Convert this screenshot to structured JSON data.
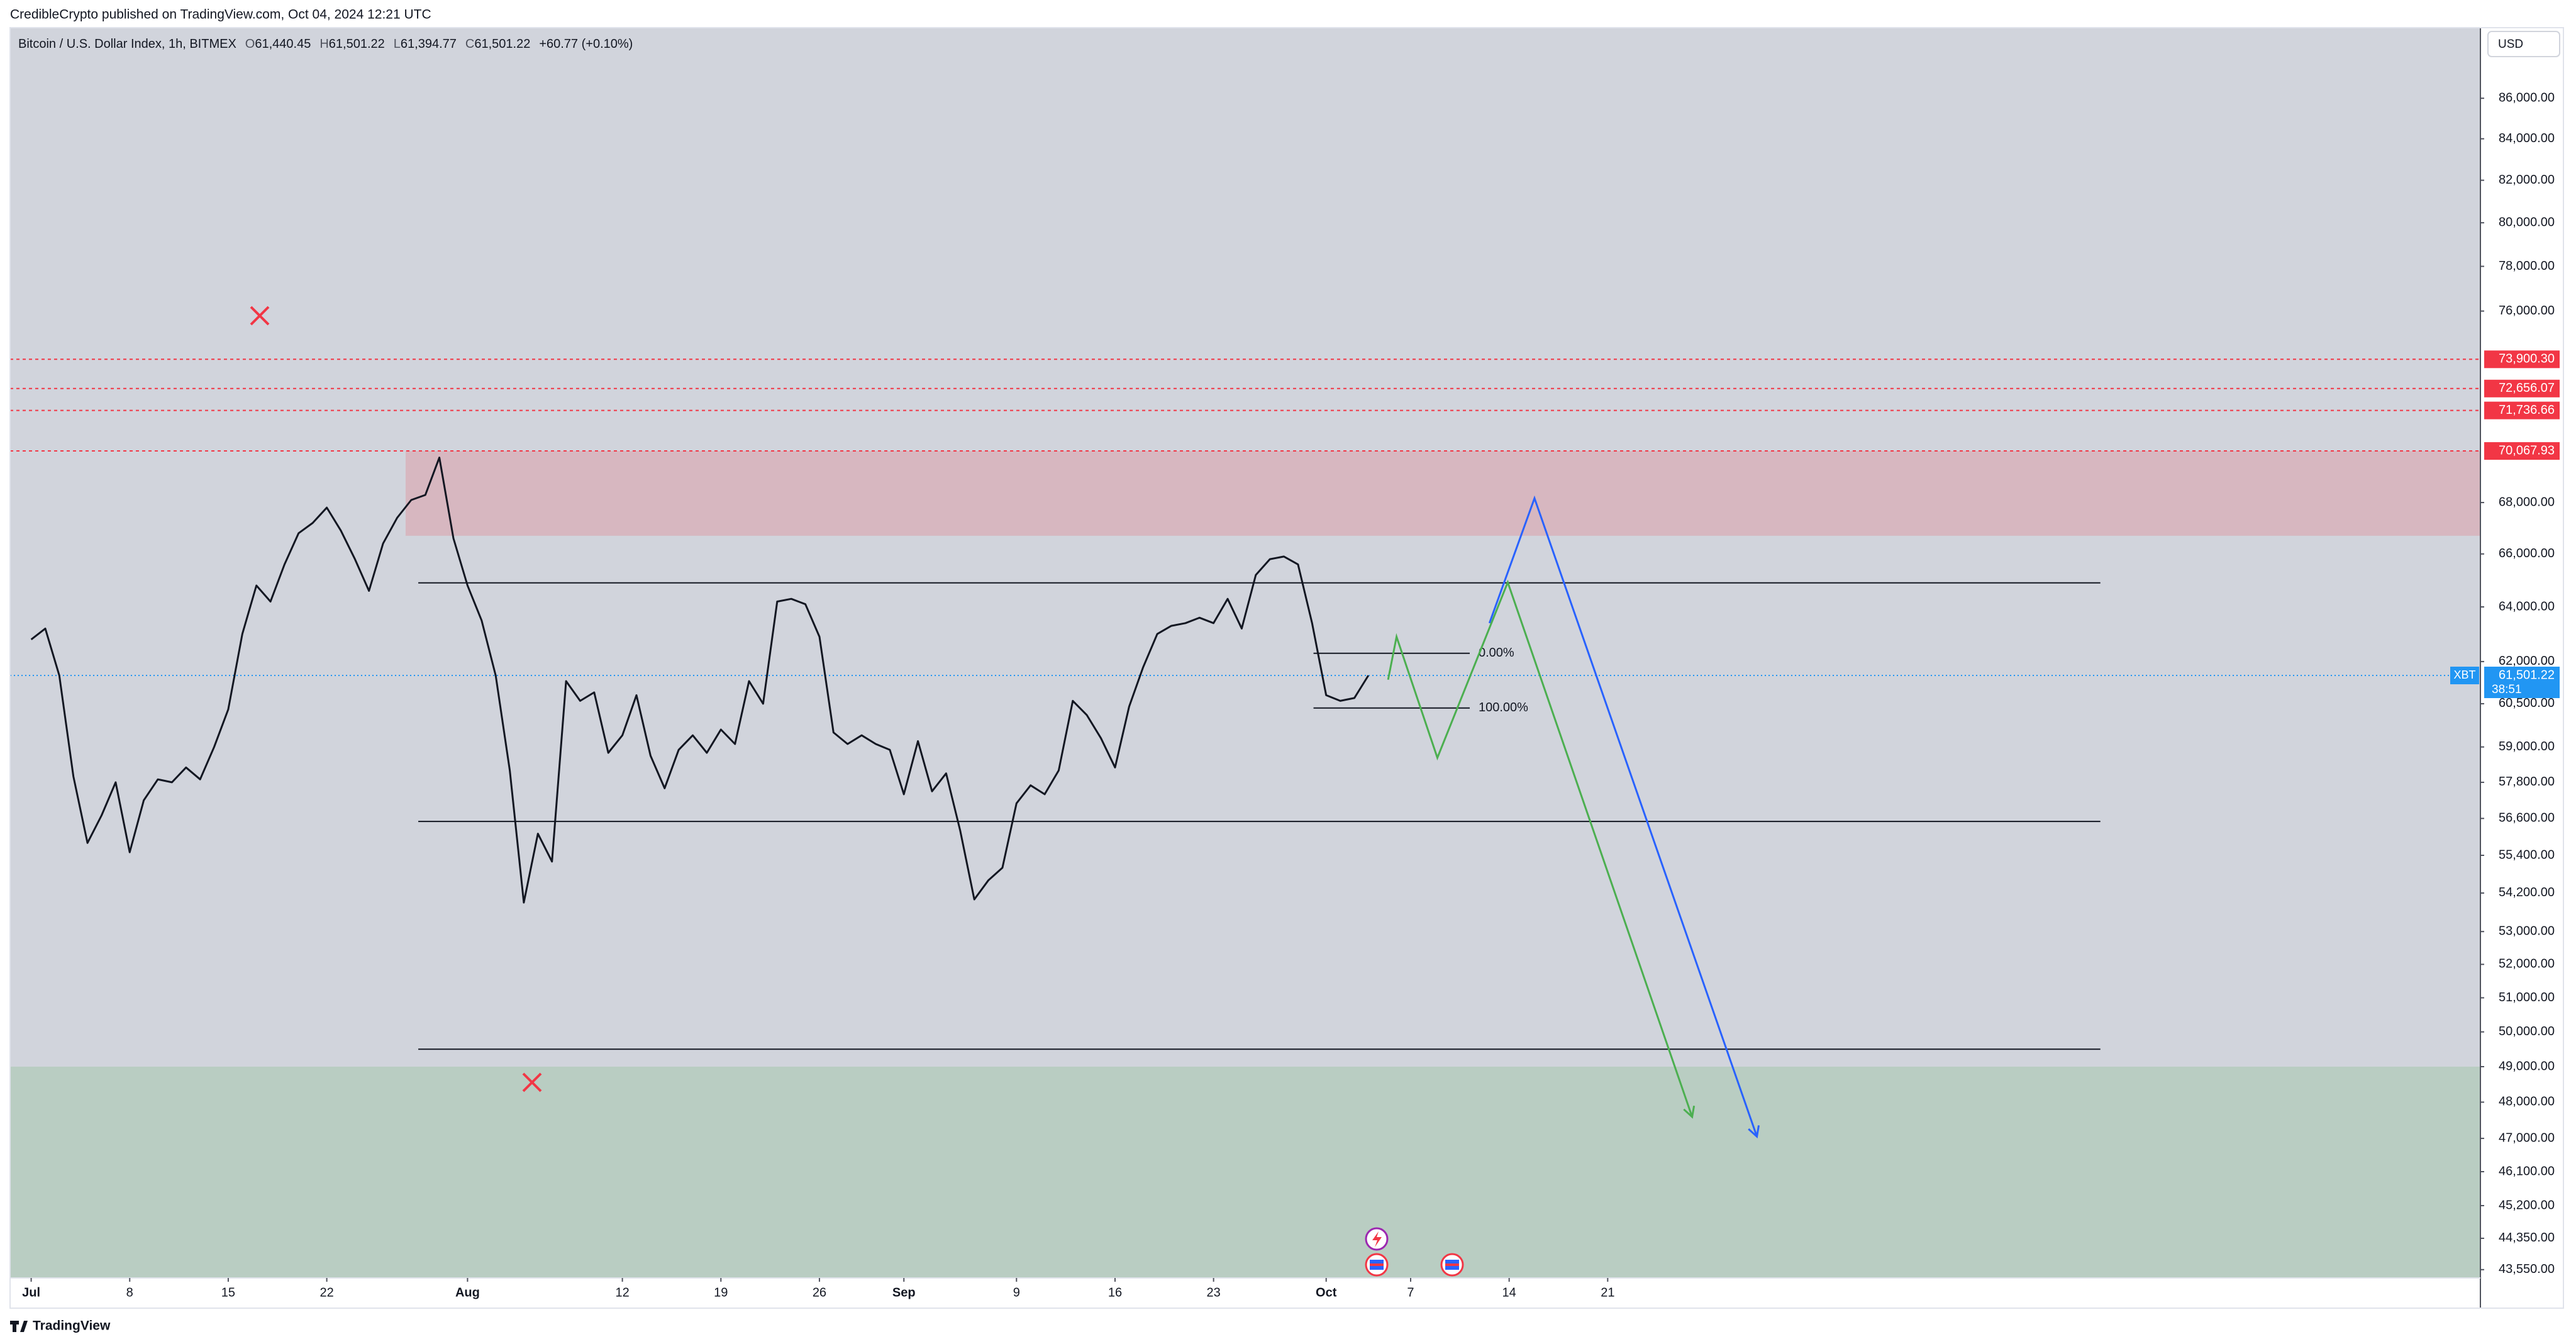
{
  "header": "CredibleCrypto published on TradingView.com, Oct 04, 2024 12:21 UTC",
  "brand": "TradingView",
  "currency": "USD",
  "chart_data": {
    "type": "line",
    "title": "Bitcoin / U.S. Dollar Index, 1h, BITMEX",
    "ohlc": [
      {
        "label": "O",
        "value": "61,440.45"
      },
      {
        "label": "H",
        "value": "61,501.22"
      },
      {
        "label": "L",
        "value": "61,394.77"
      },
      {
        "label": "C",
        "value": "61,501.22"
      }
    ],
    "change": "+60.77 (+0.10%)",
    "color": "#131722",
    "log_scale": true,
    "grid": false,
    "x": [
      0,
      1,
      2,
      3,
      4,
      5,
      6,
      7,
      8,
      9,
      10,
      11,
      12,
      13,
      14,
      15,
      16,
      17,
      18,
      19,
      20,
      21,
      22,
      23,
      24,
      25,
      26,
      27,
      28,
      29,
      30,
      31,
      32,
      33,
      34,
      35,
      36,
      37,
      38,
      39,
      40,
      41,
      42,
      43,
      44,
      45,
      46,
      47,
      48,
      49,
      50,
      51,
      52,
      53,
      54,
      55,
      56,
      57,
      58,
      59,
      60,
      61,
      62,
      63,
      64,
      65,
      66,
      67,
      68,
      69,
      70,
      71,
      72,
      73,
      74,
      75,
      76,
      77,
      78,
      79,
      80,
      81,
      82,
      83,
      84,
      85,
      86,
      87,
      88,
      89,
      90,
      91,
      92,
      93,
      94,
      95
    ],
    "values": [
      62800,
      63200,
      61500,
      58000,
      55800,
      56700,
      57800,
      55500,
      57200,
      57900,
      57800,
      58300,
      57900,
      59000,
      60300,
      63000,
      64800,
      64200,
      65600,
      66800,
      67200,
      67800,
      66900,
      65800,
      64600,
      66400,
      67400,
      68100,
      68300,
      69800,
      66600,
      64800,
      63500,
      61500,
      58200,
      53900,
      56100,
      55200,
      61300,
      60600,
      60900,
      58800,
      59400,
      60800,
      58700,
      57600,
      58900,
      59400,
      58800,
      59600,
      59100,
      61300,
      60500,
      64200,
      64300,
      64100,
      62900,
      59500,
      59100,
      59400,
      59100,
      58900,
      57400,
      59200,
      57500,
      58100,
      56200,
      54000,
      54600,
      55000,
      57100,
      57700,
      57400,
      58200,
      60600,
      60100,
      59300,
      58300,
      60400,
      61800,
      63000,
      63300,
      63400,
      63600,
      63400,
      64300,
      63200,
      65200,
      65800,
      65900,
      65600,
      63400,
      60800,
      60600,
      60700,
      61501.22
    ],
    "xlim": [
      -1.5,
      174
    ],
    "ylim": [
      43340,
      89600
    ],
    "xticks": [
      {
        "value": 0,
        "label": "Jul"
      },
      {
        "value": 7,
        "label": "8"
      },
      {
        "value": 14,
        "label": "15"
      },
      {
        "value": 21,
        "label": "22"
      },
      {
        "value": 31,
        "label": "Aug"
      },
      {
        "value": 42,
        "label": "12"
      },
      {
        "value": 49,
        "label": "19"
      },
      {
        "value": 56,
        "label": "26"
      },
      {
        "value": 62,
        "label": "Sep"
      },
      {
        "value": 70,
        "label": "9"
      },
      {
        "value": 77,
        "label": "16"
      },
      {
        "value": 84,
        "label": "23"
      },
      {
        "value": 92,
        "label": "Oct"
      },
      {
        "value": 98,
        "label": "7"
      },
      {
        "value": 105,
        "label": "14"
      },
      {
        "value": 112,
        "label": "21"
      }
    ],
    "yticks": [
      {
        "value": 86000,
        "label": "86,000.00"
      },
      {
        "value": 84000,
        "label": "84,000.00"
      },
      {
        "value": 82000,
        "label": "82,000.00"
      },
      {
        "value": 80000,
        "label": "80,000.00"
      },
      {
        "value": 78000,
        "label": "78,000.00"
      },
      {
        "value": 76000,
        "label": "76,000.00"
      },
      {
        "value": 68000,
        "label": "68,000.00"
      },
      {
        "value": 66000,
        "label": "66,000.00"
      },
      {
        "value": 64000,
        "label": "64,000.00"
      },
      {
        "value": 62000,
        "label": "62,000.00"
      },
      {
        "value": 60500,
        "label": "60,500.00"
      },
      {
        "value": 59000,
        "label": "59,000.00"
      },
      {
        "value": 57800,
        "label": "57,800.00"
      },
      {
        "value": 56600,
        "label": "56,600.00"
      },
      {
        "value": 55400,
        "label": "55,400.00"
      },
      {
        "value": 54200,
        "label": "54,200.00"
      },
      {
        "value": 53000,
        "label": "53,000.00"
      },
      {
        "value": 52000,
        "label": "52,000.00"
      },
      {
        "value": 51000,
        "label": "51,000.00"
      },
      {
        "value": 50000,
        "label": "50,000.00"
      },
      {
        "value": 49000,
        "label": "49,000.00"
      },
      {
        "value": 48000,
        "label": "48,000.00"
      },
      {
        "value": 47000,
        "label": "47,000.00"
      },
      {
        "value": 46100,
        "label": "46,100.00"
      },
      {
        "value": 45200,
        "label": "45,200.00"
      },
      {
        "value": 44350,
        "label": "44,350.00"
      },
      {
        "value": 43550,
        "label": "43,550.00"
      }
    ],
    "zones": [
      {
        "top": 70067.93,
        "bottom": 66700,
        "start": 26.6,
        "color": "rgba(242,54,69,0.18)"
      },
      {
        "top": 49000,
        "start": -1.5,
        "color": "rgba(76,175,80,0.18)"
      }
    ],
    "price_lines": [
      {
        "value": 73900.3,
        "label": "73,900.30"
      },
      {
        "value": 72656.07,
        "label": "72,656.07"
      },
      {
        "value": 71736.66,
        "label": "71,736.66"
      },
      {
        "value": 70067.93,
        "label": "70,067.93"
      }
    ],
    "price_line_color": "#f23645",
    "levels": [
      {
        "value": 64900,
        "start": 27.5,
        "end": 147
      },
      {
        "value": 56500,
        "start": 27.5,
        "end": 147
      },
      {
        "value": 49500,
        "start": 27.5,
        "end": 147
      }
    ],
    "fib": {
      "start": 91.1,
      "end": 102.2,
      "levels": [
        {
          "value": 62300,
          "label": "0.00%"
        },
        {
          "value": 60350,
          "label": "100.00%"
        }
      ]
    },
    "projections": [
      {
        "color": "#4caf50",
        "x": [
          96.4,
          97.0,
          99.9,
          104.9,
          118.0
        ],
        "y": [
          61350,
          62900,
          58630,
          64920,
          47590
        ]
      },
      {
        "color": "#2962ff",
        "x": [
          103.6,
          106.8,
          122.6
        ],
        "y": [
          63400,
          68170,
          47050
        ]
      }
    ],
    "last_price": {
      "symbol": "XBT",
      "value": 61501.22,
      "label": "61,501.22",
      "countdown": "38:51",
      "color": "#2196f3"
    }
  }
}
